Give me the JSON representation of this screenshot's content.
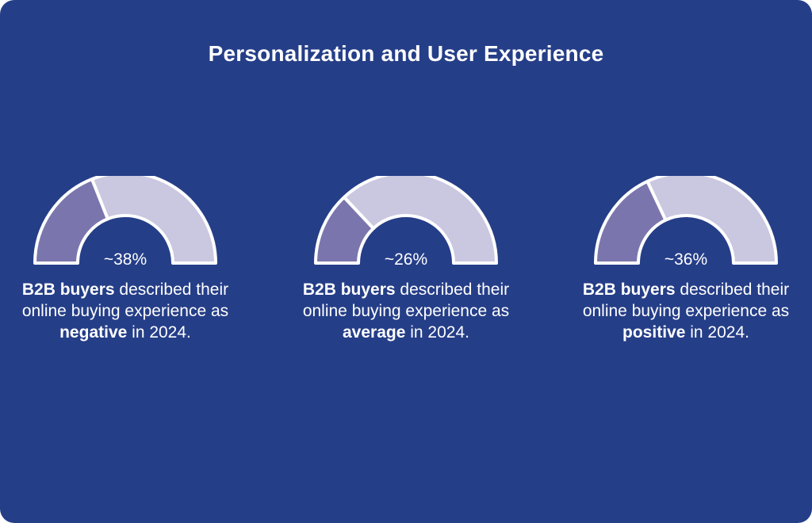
{
  "title": "Personalization and User Experience",
  "colors": {
    "background": "#253E88",
    "filled": "#7A76AD",
    "remaining": "#CAC8E0",
    "stroke": "#FFFFFF",
    "text": "#FFFFFF"
  },
  "chart_data": [
    {
      "type": "gauge",
      "value": 38,
      "max": 100,
      "label": "~38%",
      "description": {
        "bold_lead": "B2B buyers",
        "text_1": " described their online buying experience as ",
        "bold_sentiment": "negative",
        "text_2": " in 2024."
      }
    },
    {
      "type": "gauge",
      "value": 26,
      "max": 100,
      "label": "~26%",
      "description": {
        "bold_lead": "B2B buyers",
        "text_1": " described their online buying experience as ",
        "bold_sentiment": "average",
        "text_2": " in 2024."
      }
    },
    {
      "type": "gauge",
      "value": 36,
      "max": 100,
      "label": "~36%",
      "description": {
        "bold_lead": "B2B buyers",
        "text_1": " described their online buying experience as ",
        "bold_sentiment": "positive",
        "text_2": " in 2024."
      }
    }
  ]
}
